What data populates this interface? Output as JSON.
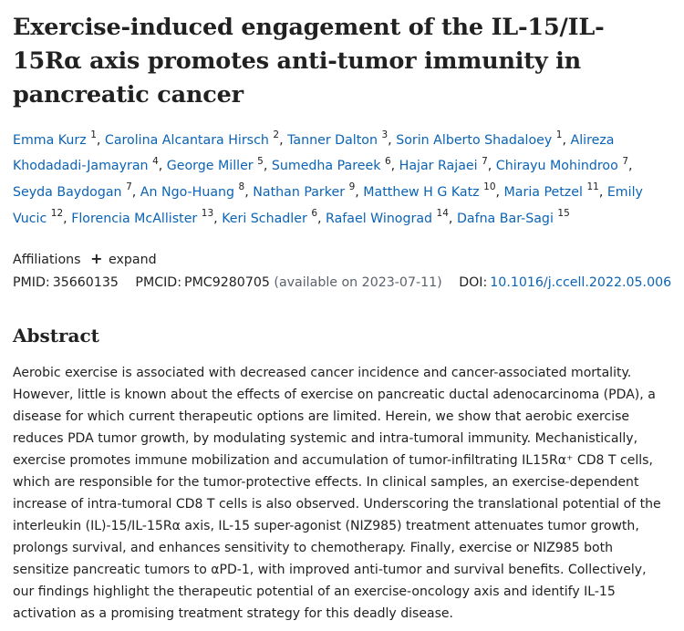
{
  "article": {
    "title": "Exercise-induced engagement of the IL-15/IL-15Rα axis promotes anti-tumor immunity in pancreatic cancer",
    "authors": [
      {
        "name": "Emma Kurz",
        "aff": "1"
      },
      {
        "name": "Carolina Alcantara Hirsch",
        "aff": "2"
      },
      {
        "name": "Tanner Dalton",
        "aff": "3"
      },
      {
        "name": "Sorin Alberto Shadaloey",
        "aff": "1"
      },
      {
        "name": "Alireza Khodadadi-Jamayran",
        "aff": "4"
      },
      {
        "name": "George Miller",
        "aff": "5"
      },
      {
        "name": "Sumedha Pareek",
        "aff": "6"
      },
      {
        "name": "Hajar Rajaei",
        "aff": "7"
      },
      {
        "name": "Chirayu Mohindroo",
        "aff": "7"
      },
      {
        "name": "Seyda Baydogan",
        "aff": "7"
      },
      {
        "name": "An Ngo-Huang",
        "aff": "8"
      },
      {
        "name": "Nathan Parker",
        "aff": "9"
      },
      {
        "name": "Matthew H G Katz",
        "aff": "10"
      },
      {
        "name": "Maria Petzel",
        "aff": "11"
      },
      {
        "name": "Emily Vucic",
        "aff": "12"
      },
      {
        "name": "Florencia McAllister",
        "aff": "13"
      },
      {
        "name": "Keri Schadler",
        "aff": "6"
      },
      {
        "name": "Rafael Winograd",
        "aff": "14"
      },
      {
        "name": "Dafna Bar-Sagi",
        "aff": "15"
      }
    ],
    "affiliations_label": "Affiliations",
    "expand_label": "expand",
    "expand_icon": "plus-icon",
    "pmid_label": "PMID:",
    "pmid": "35660135",
    "pmcid_label": "PMCID:",
    "pmcid": "PMC9280705",
    "pmcid_note": "(available on 2023-07-11)",
    "doi_label": "DOI:",
    "doi": "10.1016/j.ccell.2022.05.006",
    "abstract_heading": "Abstract",
    "abstract_text": "Aerobic exercise is associated with decreased cancer incidence and cancer-associated mortality. However, little is known about the effects of exercise on pancreatic ductal adenocarcinoma (PDA), a disease for which current therapeutic options are limited. Herein, we show that aerobic exercise reduces PDA tumor growth, by modulating systemic and intra-tumoral immunity. Mechanistically, exercise promotes immune mobilization and accumulation of tumor-infiltrating IL15Rα⁺ CD8 T cells, which are responsible for the tumor-protective effects. In clinical samples, an exercise-dependent increase of intra-tumoral CD8 T cells is also observed. Underscoring the translational potential of the interleukin (IL)-15/IL-15Rα axis, IL-15 super-agonist (NIZ985) treatment attenuates tumor growth, prolongs survival, and enhances sensitivity to chemotherapy. Finally, exercise or NIZ985 both sensitize pancreatic tumors to αPD-1, with improved anti-tumor and survival benefits. Collectively, our findings highlight the therapeutic potential of an exercise-oncology axis and identify IL-15 activation as a promising treatment strategy for this deadly disease."
  },
  "colors": {
    "link": "#0b63b5",
    "text": "#212121",
    "muted": "#5b616b"
  }
}
